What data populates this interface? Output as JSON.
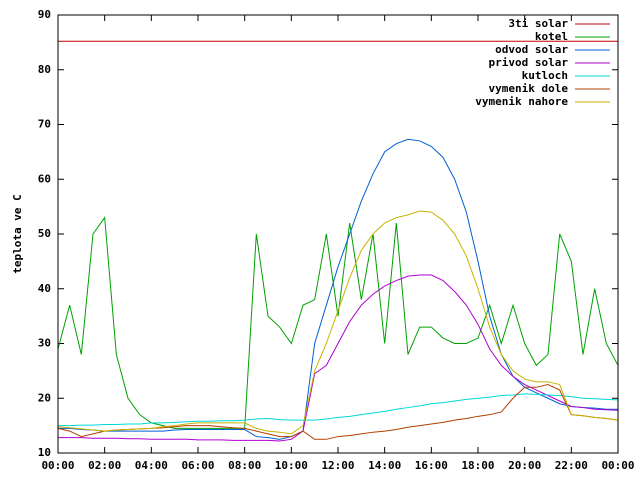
{
  "chart_data": {
    "type": "line",
    "y_label": "teplota ve C",
    "legend": "top right",
    "xlim": [
      0,
      24
    ],
    "ylim": [
      10,
      90
    ],
    "yticks": [
      10,
      20,
      30,
      40,
      50,
      60,
      70,
      80,
      90
    ],
    "xticks": [
      {
        "value": 0,
        "label": "00:00"
      },
      {
        "value": 2,
        "label": "02:00"
      },
      {
        "value": 4,
        "label": "04:00"
      },
      {
        "value": 6,
        "label": "06:00"
      },
      {
        "value": 8,
        "label": "08:00"
      },
      {
        "value": 10,
        "label": "10:00"
      },
      {
        "value": 12,
        "label": "12:00"
      },
      {
        "value": 14,
        "label": "14:00"
      },
      {
        "value": 16,
        "label": "16:00"
      },
      {
        "value": 18,
        "label": "18:00"
      },
      {
        "value": 20,
        "label": "20:00"
      },
      {
        "value": 22,
        "label": "22:00"
      },
      {
        "value": 24,
        "label": "00:00"
      }
    ],
    "x": [
      0,
      0.5,
      1,
      1.5,
      2,
      2.5,
      3,
      3.5,
      4,
      4.5,
      5,
      5.5,
      6,
      6.5,
      7,
      7.5,
      8,
      8.5,
      9,
      9.5,
      10,
      10.5,
      11,
      11.5,
      12,
      12.5,
      13,
      13.5,
      14,
      14.5,
      15,
      15.5,
      16,
      16.5,
      17,
      17.5,
      18,
      18.5,
      19,
      19.5,
      20,
      20.5,
      21,
      21.5,
      22,
      22.5,
      23,
      23.5,
      24
    ],
    "series": [
      {
        "name": "3ti solar",
        "color": "#c00000",
        "values": [
          85.2,
          85.2,
          85.2,
          85.2,
          85.2,
          85.2,
          85.2,
          85.2,
          85.2,
          85.2,
          85.2,
          85.2,
          85.2,
          85.2,
          85.2,
          85.2,
          85.2,
          85.2,
          85.2,
          85.2,
          85.2,
          85.2,
          85.2,
          85.2,
          85.2,
          85.2,
          85.2,
          85.2,
          85.2,
          85.2,
          85.2,
          85.2,
          85.2,
          85.2,
          85.2,
          85.2,
          85.2,
          85.2,
          85.2,
          85.2,
          85.2,
          85.2,
          85.2,
          85.2,
          85.2,
          85.2,
          85.2,
          85.2,
          85.2
        ]
      },
      {
        "name": "kotel",
        "color": "#00a000",
        "values": [
          29,
          37,
          28,
          50,
          53,
          28,
          20,
          17,
          15.5,
          15,
          14.5,
          14.5,
          14.5,
          14.5,
          14.5,
          14.5,
          14.5,
          50,
          35,
          33,
          30,
          37,
          38,
          50,
          35,
          52,
          38,
          50,
          30,
          52,
          28,
          33,
          33,
          31,
          30,
          30,
          31,
          37,
          30,
          37,
          30,
          26,
          28,
          50,
          45,
          28,
          40,
          30,
          26
        ]
      },
      {
        "name": "odvod solar",
        "color": "#0060d0",
        "values": [
          14.5,
          14.5,
          14.3,
          14.2,
          14,
          14,
          14,
          14,
          14,
          14,
          14.2,
          14.3,
          14.3,
          14.3,
          14.3,
          14.3,
          14.3,
          13,
          12.8,
          12.5,
          13,
          14,
          30,
          37,
          44,
          50,
          56,
          61,
          65,
          66.5,
          67.3,
          67,
          66,
          64,
          60,
          54,
          45,
          35,
          28,
          24,
          22,
          21,
          20,
          19,
          18.5,
          18.3,
          18.2,
          18,
          18
        ]
      },
      {
        "name": "privod solar",
        "color": "#b000d0",
        "values": [
          12.8,
          12.8,
          12.8,
          12.7,
          12.7,
          12.7,
          12.6,
          12.6,
          12.5,
          12.5,
          12.5,
          12.5,
          12.4,
          12.4,
          12.4,
          12.3,
          12.3,
          12.3,
          12.3,
          12.2,
          12.5,
          14,
          24.5,
          26,
          30,
          34,
          37,
          39,
          40.5,
          41.5,
          42.3,
          42.5,
          42.5,
          41.5,
          39.5,
          37,
          33.5,
          29,
          26,
          24,
          22.5,
          21.5,
          20.5,
          19.5,
          18.5,
          18.3,
          18,
          17.9,
          17.8
        ]
      },
      {
        "name": "kutloch",
        "color": "#00d8d8",
        "values": [
          15,
          15,
          15.1,
          15.1,
          15.2,
          15.2,
          15.3,
          15.3,
          15.5,
          15.5,
          15.6,
          15.7,
          15.8,
          15.8,
          15.9,
          15.9,
          16,
          16.2,
          16.3,
          16.1,
          16,
          16,
          16,
          16.2,
          16.5,
          16.7,
          17,
          17.3,
          17.6,
          18,
          18.3,
          18.6,
          19,
          19.2,
          19.5,
          19.8,
          20,
          20.2,
          20.5,
          20.6,
          20.8,
          20.7,
          20.6,
          20.5,
          20.3,
          20,
          19.9,
          19.8,
          19.7
        ]
      },
      {
        "name": "vymenik dole",
        "color": "#b04000",
        "values": [
          14.5,
          14,
          13,
          13.5,
          14,
          14.2,
          14.3,
          14.4,
          14.5,
          14.6,
          14.8,
          15,
          15,
          15,
          14.8,
          14.6,
          14.5,
          14,
          13.5,
          13,
          13,
          14,
          12.5,
          12.5,
          13,
          13.2,
          13.5,
          13.8,
          14,
          14.3,
          14.7,
          15,
          15.3,
          15.6,
          16,
          16.3,
          16.7,
          17,
          17.5,
          20,
          22,
          22,
          22.5,
          21.5,
          17,
          16.8,
          16.5,
          16.3,
          16
        ]
      },
      {
        "name": "vymenik nahore",
        "color": "#c8b400",
        "values": [
          14.8,
          14.6,
          14.4,
          14.2,
          14,
          14.2,
          14.3,
          14.4,
          14.5,
          14.8,
          15,
          15.3,
          15.5,
          15.5,
          15.5,
          15.5,
          15.5,
          14.5,
          14,
          13.8,
          13.5,
          15,
          25,
          30,
          36,
          42,
          47,
          50,
          52,
          53,
          53.5,
          54.2,
          54,
          52.5,
          50,
          46,
          40,
          33,
          28,
          25,
          23.5,
          23,
          23,
          22.5,
          17,
          16.8,
          16.5,
          16.3,
          16
        ]
      }
    ]
  }
}
